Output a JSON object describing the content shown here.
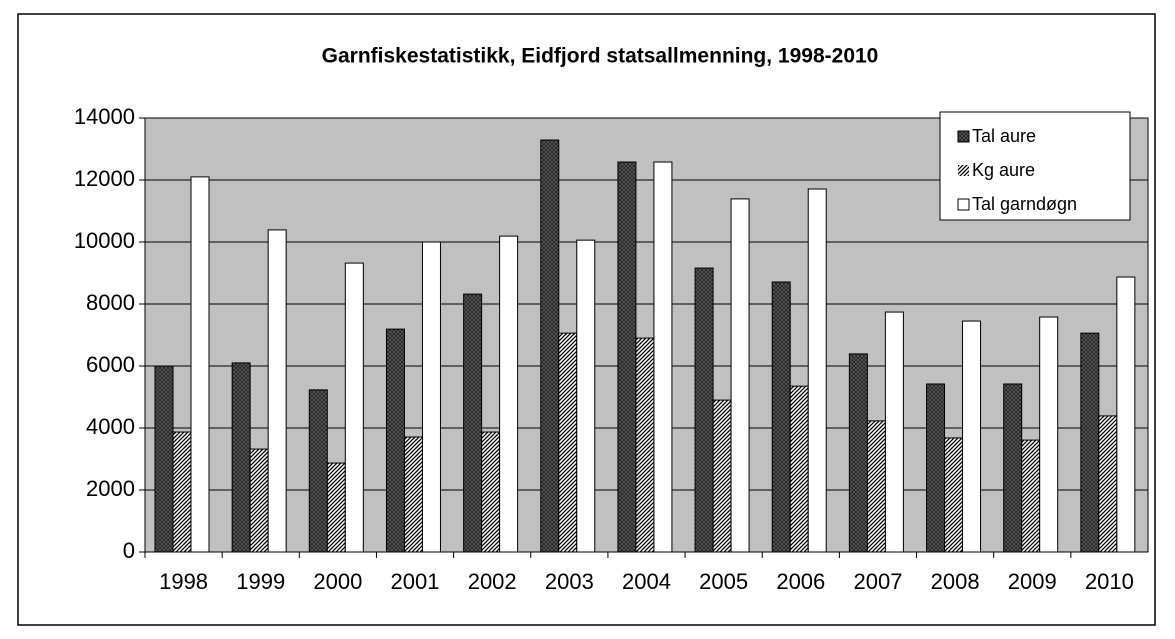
{
  "chart_data": {
    "type": "bar",
    "title": "Garnfiskestatistikk, Eidfjord statsallmenning, 1998-2010",
    "categories": [
      "1998",
      "1999",
      "2000",
      "2001",
      "2002",
      "2003",
      "2004",
      "2005",
      "2006",
      "2007",
      "2008",
      "2009",
      "2010"
    ],
    "series": [
      {
        "name": "Tal aure",
        "color": "#5a5a5a",
        "pattern": "crosshatch",
        "values": [
          6000,
          6100,
          5230,
          7190,
          8320,
          13290,
          12580,
          9160,
          8710,
          6390,
          5420,
          5420,
          7060
        ]
      },
      {
        "name": "Kg aure",
        "color": "#ffffff",
        "pattern": "diagonal",
        "values": [
          3870,
          3320,
          2870,
          3710,
          3870,
          7060,
          6900,
          4900,
          5350,
          4230,
          3680,
          3610,
          4390
        ]
      },
      {
        "name": "Tal garndøgn",
        "color": "#ffffff",
        "pattern": "none",
        "values": [
          12100,
          10390,
          9320,
          10000,
          10190,
          10060,
          12580,
          11390,
          11710,
          7740,
          7450,
          7580,
          8870
        ]
      }
    ],
    "ylim": [
      0,
      14000
    ],
    "yticks": [
      0,
      2000,
      4000,
      6000,
      8000,
      10000,
      12000,
      14000
    ],
    "grid": true,
    "legend": "top-right",
    "plot_background": "#c0c0c0"
  }
}
